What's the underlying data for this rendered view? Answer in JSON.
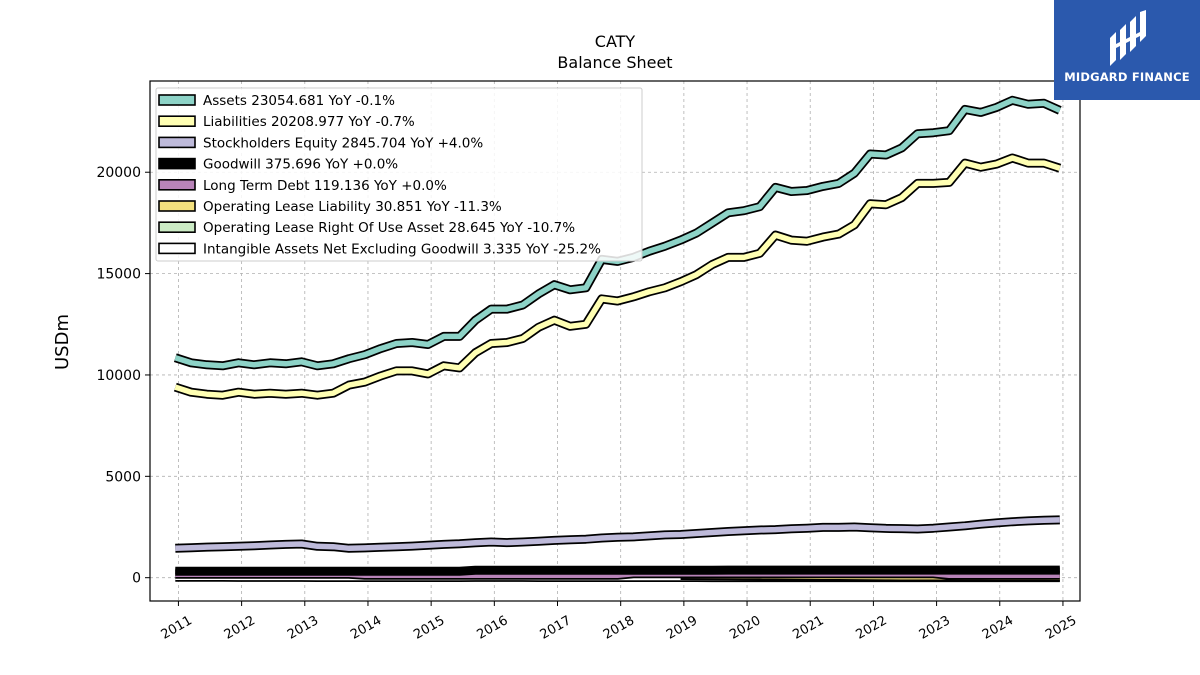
{
  "chart_data": {
    "type": "line",
    "title": "CATY",
    "subtitle": "Balance  Sheet",
    "ylabel": "USDm",
    "xlabel": "",
    "xlim": [
      2010.55,
      2025.27
    ],
    "ylim": [
      -1150,
      24500
    ],
    "yticks": [
      0,
      5000,
      10000,
      15000,
      20000
    ],
    "xticks": [
      "2011",
      "2012",
      "2013",
      "2014",
      "2015",
      "2016",
      "2017",
      "2018",
      "2019",
      "2020",
      "2021",
      "2022",
      "2023",
      "2024",
      "2025"
    ],
    "grid": true,
    "legend_position": "top-left",
    "x": [
      2010.95,
      2011.2,
      2011.45,
      2011.7,
      2011.95,
      2012.2,
      2012.45,
      2012.7,
      2012.95,
      2013.2,
      2013.45,
      2013.7,
      2013.95,
      2014.2,
      2014.45,
      2014.7,
      2014.95,
      2015.2,
      2015.45,
      2015.7,
      2015.95,
      2016.2,
      2016.45,
      2016.7,
      2016.95,
      2017.2,
      2017.45,
      2017.7,
      2017.95,
      2018.2,
      2018.45,
      2018.7,
      2018.95,
      2019.2,
      2019.45,
      2019.7,
      2019.95,
      2020.2,
      2020.45,
      2020.7,
      2020.95,
      2021.2,
      2021.45,
      2021.7,
      2021.95,
      2022.2,
      2022.45,
      2022.7,
      2022.95,
      2023.2,
      2023.45,
      2023.7,
      2023.95,
      2024.2,
      2024.45,
      2024.7,
      2024.95
    ],
    "series": [
      {
        "name": "Assets",
        "legend": "Assets  23054.681 YoY -0.1%",
        "color": "#8dd3c7",
        "values": [
          10850,
          10600,
          10500,
          10450,
          10600,
          10500,
          10600,
          10550,
          10650,
          10450,
          10550,
          10800,
          11000,
          11300,
          11550,
          11600,
          11500,
          11900,
          11900,
          12700,
          13250,
          13250,
          13450,
          14000,
          14450,
          14200,
          14300,
          15700,
          15600,
          15800,
          16100,
          16350,
          16650,
          17000,
          17500,
          18000,
          18100,
          18300,
          19250,
          19050,
          19100,
          19300,
          19450,
          19950,
          20900,
          20850,
          21200,
          21900,
          21950,
          22050,
          23100,
          22950,
          23200,
          23550,
          23350,
          23400,
          23050
        ]
      },
      {
        "name": "Liabilities",
        "legend": "Liabilities  20208.977 YoY -0.7%",
        "color": "#ffffb3",
        "values": [
          9400,
          9150,
          9050,
          9000,
          9150,
          9050,
          9100,
          9050,
          9100,
          9000,
          9100,
          9500,
          9650,
          9950,
          10200,
          10200,
          10050,
          10450,
          10350,
          11100,
          11550,
          11600,
          11800,
          12350,
          12700,
          12400,
          12500,
          13750,
          13650,
          13850,
          14100,
          14300,
          14600,
          14950,
          15450,
          15800,
          15800,
          16000,
          16900,
          16650,
          16600,
          16800,
          16950,
          17400,
          18450,
          18400,
          18750,
          19450,
          19450,
          19500,
          20450,
          20250,
          20400,
          20700,
          20450,
          20450,
          20200
        ]
      },
      {
        "name": "Stockholders Equity",
        "legend": "Stockholders Equity  2845.704 YoY +4.0%",
        "color": "#bebada",
        "values": [
          1450,
          1480,
          1510,
          1530,
          1550,
          1580,
          1610,
          1640,
          1660,
          1550,
          1530,
          1450,
          1470,
          1500,
          1530,
          1560,
          1600,
          1640,
          1670,
          1720,
          1760,
          1730,
          1760,
          1800,
          1840,
          1870,
          1900,
          1960,
          1990,
          2010,
          2060,
          2110,
          2130,
          2180,
          2230,
          2280,
          2320,
          2350,
          2370,
          2410,
          2440,
          2480,
          2480,
          2500,
          2460,
          2430,
          2420,
          2400,
          2440,
          2500,
          2560,
          2640,
          2700,
          2760,
          2800,
          2830,
          2850
        ]
      },
      {
        "name": "Goodwill",
        "legend": "Goodwill  375.696 YoY +0.0%",
        "color": "#000000",
        "values": [
          315,
          315,
          315,
          315,
          315,
          315,
          315,
          315,
          315,
          315,
          315,
          315,
          315,
          315,
          315,
          315,
          315,
          315,
          315,
          370,
          370,
          370,
          370,
          370,
          370,
          370,
          370,
          370,
          370,
          370,
          370,
          370,
          370,
          370,
          370,
          375,
          375,
          375,
          375,
          375,
          375,
          375,
          375,
          375,
          375,
          375,
          375,
          375,
          375,
          375,
          375,
          375,
          375,
          375,
          375,
          375,
          375
        ]
      },
      {
        "name": "Long Term Debt",
        "legend": "Long Term Debt  119.136 YoY +0.0%",
        "color": "#b883b8",
        "values": [
          170,
          170,
          170,
          170,
          170,
          170,
          170,
          170,
          170,
          170,
          170,
          170,
          120,
          120,
          120,
          120,
          120,
          120,
          120,
          120,
          120,
          120,
          120,
          120,
          120,
          120,
          120,
          120,
          120,
          190,
          190,
          190,
          190,
          190,
          190,
          190,
          190,
          190,
          190,
          190,
          190,
          190,
          190,
          190,
          190,
          190,
          190,
          190,
          190,
          119,
          119,
          119,
          119,
          119,
          119,
          119,
          119
        ]
      },
      {
        "name": "Operating Lease Liability",
        "legend": "Operating Lease Liability  30.851 YoY -11.3%",
        "color": "#f4e17e",
        "values": [
          null,
          null,
          null,
          null,
          null,
          null,
          null,
          null,
          null,
          null,
          null,
          null,
          null,
          null,
          null,
          null,
          null,
          null,
          null,
          null,
          null,
          null,
          null,
          null,
          null,
          null,
          null,
          null,
          null,
          null,
          null,
          null,
          120,
          115,
          110,
          105,
          100,
          95,
          90,
          85,
          80,
          75,
          70,
          65,
          60,
          55,
          50,
          48,
          45,
          43,
          40,
          38,
          36,
          34,
          33,
          32,
          31
        ]
      },
      {
        "name": "Operating Lease Right Of Use Asset",
        "legend": "Operating Lease Right Of Use Asset  28.645 YoY -10.7%",
        "color": "#ccebc5",
        "values": [
          null,
          null,
          null,
          null,
          null,
          null,
          null,
          null,
          null,
          null,
          null,
          null,
          null,
          null,
          null,
          null,
          null,
          null,
          null,
          null,
          null,
          null,
          null,
          null,
          null,
          null,
          null,
          null,
          null,
          null,
          null,
          null,
          110,
          105,
          100,
          95,
          90,
          85,
          80,
          75,
          70,
          66,
          62,
          58,
          54,
          50,
          46,
          44,
          42,
          40,
          37,
          35,
          33,
          32,
          30,
          29,
          28.6
        ]
      },
      {
        "name": "Intangible Assets Net Excluding Goodwill",
        "legend": "Intangible Assets Net Excluding Goodwill  3.335 YoY -25.2%",
        "color": "#ffffff",
        "values": [
          20,
          19,
          18,
          17,
          16,
          15,
          14,
          13,
          12,
          11,
          10,
          10,
          9,
          9,
          8,
          8,
          8,
          7,
          7,
          14,
          13,
          12,
          12,
          11,
          10,
          10,
          9,
          9,
          8,
          8,
          8,
          7,
          7,
          7,
          6,
          6,
          6,
          6,
          5,
          5,
          5,
          5,
          5,
          5,
          5,
          5,
          4,
          4,
          4,
          4,
          4,
          4,
          4,
          3.8,
          3.6,
          3.5,
          3.3
        ]
      }
    ]
  },
  "logo": {
    "text": "MIDGARD FINANCE",
    "icon": "midgard-logo-icon",
    "background": "#2b59ad"
  }
}
